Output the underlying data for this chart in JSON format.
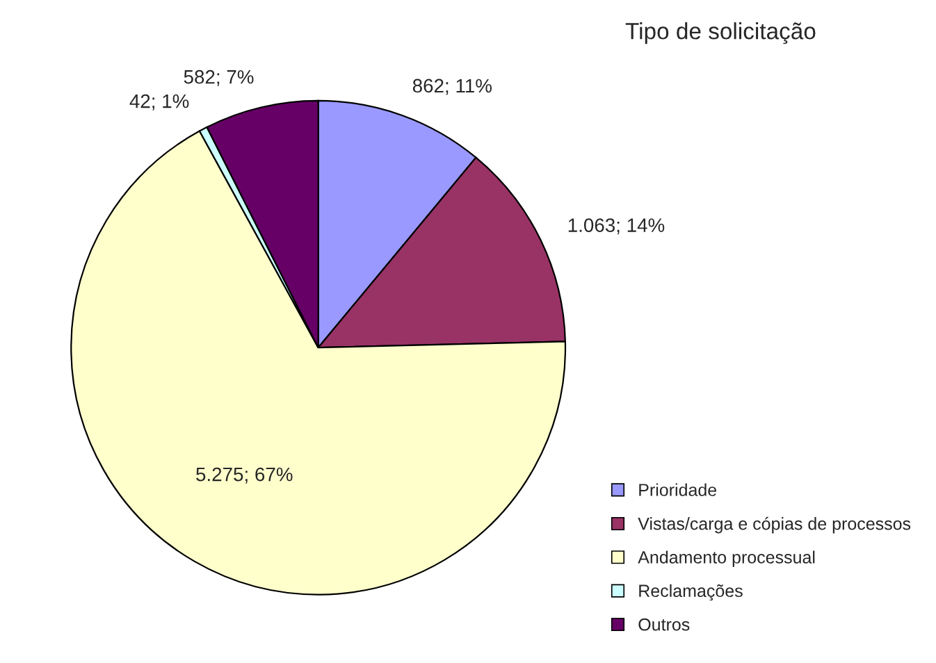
{
  "chart_data": {
    "type": "pie",
    "title": "Tipo de solicitação",
    "categories": [
      "Prioridade",
      "Vistas/carga e cópias de processos",
      "Andamento processual",
      "Reclamações",
      "Outros"
    ],
    "values": [
      862,
      1063,
      5275,
      42,
      582
    ],
    "colors": [
      "#9999ff",
      "#993366",
      "#ffffcc",
      "#ccffff",
      "#660066"
    ],
    "value_labels": [
      "862; 11%",
      "1.063; 14%",
      "5.275; 67%",
      "42; 1%",
      "582; 7%"
    ],
    "legend": "bottom right"
  }
}
